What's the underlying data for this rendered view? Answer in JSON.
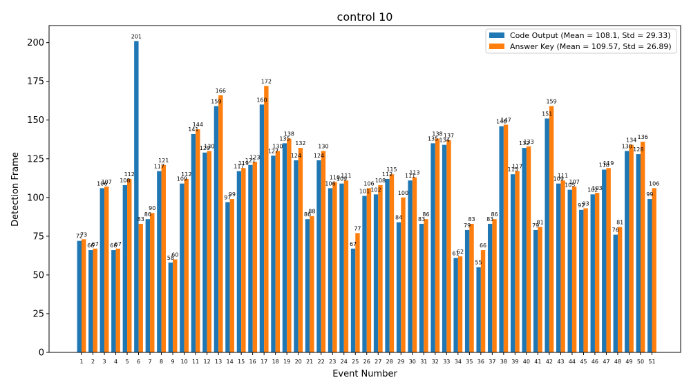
{
  "chart_data": {
    "type": "bar",
    "title": "control 10",
    "xlabel": "Event Number",
    "ylabel": "Detection Frame",
    "ylim": [
      0,
      211
    ],
    "yticks": [
      0,
      25,
      50,
      75,
      100,
      125,
      150,
      175,
      200
    ],
    "grid": false,
    "legend_position": "top-right",
    "categories": [
      "1",
      "2",
      "3",
      "4",
      "5",
      "6",
      "7",
      "8",
      "9",
      "10",
      "11",
      "12",
      "13",
      "14",
      "15",
      "16",
      "17",
      "18",
      "19",
      "20",
      "21",
      "22",
      "23",
      "24",
      "25",
      "26",
      "27",
      "28",
      "29",
      "30",
      "31",
      "32",
      "33",
      "34",
      "35",
      "36",
      "37",
      "38",
      "39",
      "40",
      "41",
      "42",
      "43",
      "44",
      "45",
      "46",
      "47",
      "48",
      "49",
      "50",
      "51"
    ],
    "series": [
      {
        "name": "Code Output (Mean = 108.1, Std = 29.33)",
        "color": "#1f77b4",
        "values": [
          72,
          66,
          106,
          66,
          108,
          201,
          86,
          117,
          58,
          109,
          141,
          129,
          159,
          97,
          117,
          121,
          160,
          127,
          135,
          124,
          86,
          124,
          106,
          109,
          67,
          101,
          102,
          112,
          84,
          111,
          83,
          135,
          134,
          61,
          79,
          55,
          83,
          146,
          115,
          132,
          79,
          151,
          109,
          105,
          92,
          102,
          118,
          76,
          130,
          128,
          99
        ]
      },
      {
        "name": "Answer Key (Mean = 109.57, Std = 26.89)",
        "color": "#ff7f0e",
        "values": [
          73,
          67,
          107,
          67,
          112,
          83,
          90,
          121,
          60,
          112,
          144,
          130,
          166,
          99,
          119,
          123,
          172,
          130,
          138,
          132,
          88,
          130,
          110,
          111,
          77,
          106,
          108,
          115,
          100,
          113,
          86,
          138,
          137,
          62,
          83,
          66,
          86,
          147,
          117,
          133,
          81,
          159,
          111,
          107,
          93,
          103,
          119,
          81,
          134,
          136,
          106
        ]
      }
    ]
  }
}
